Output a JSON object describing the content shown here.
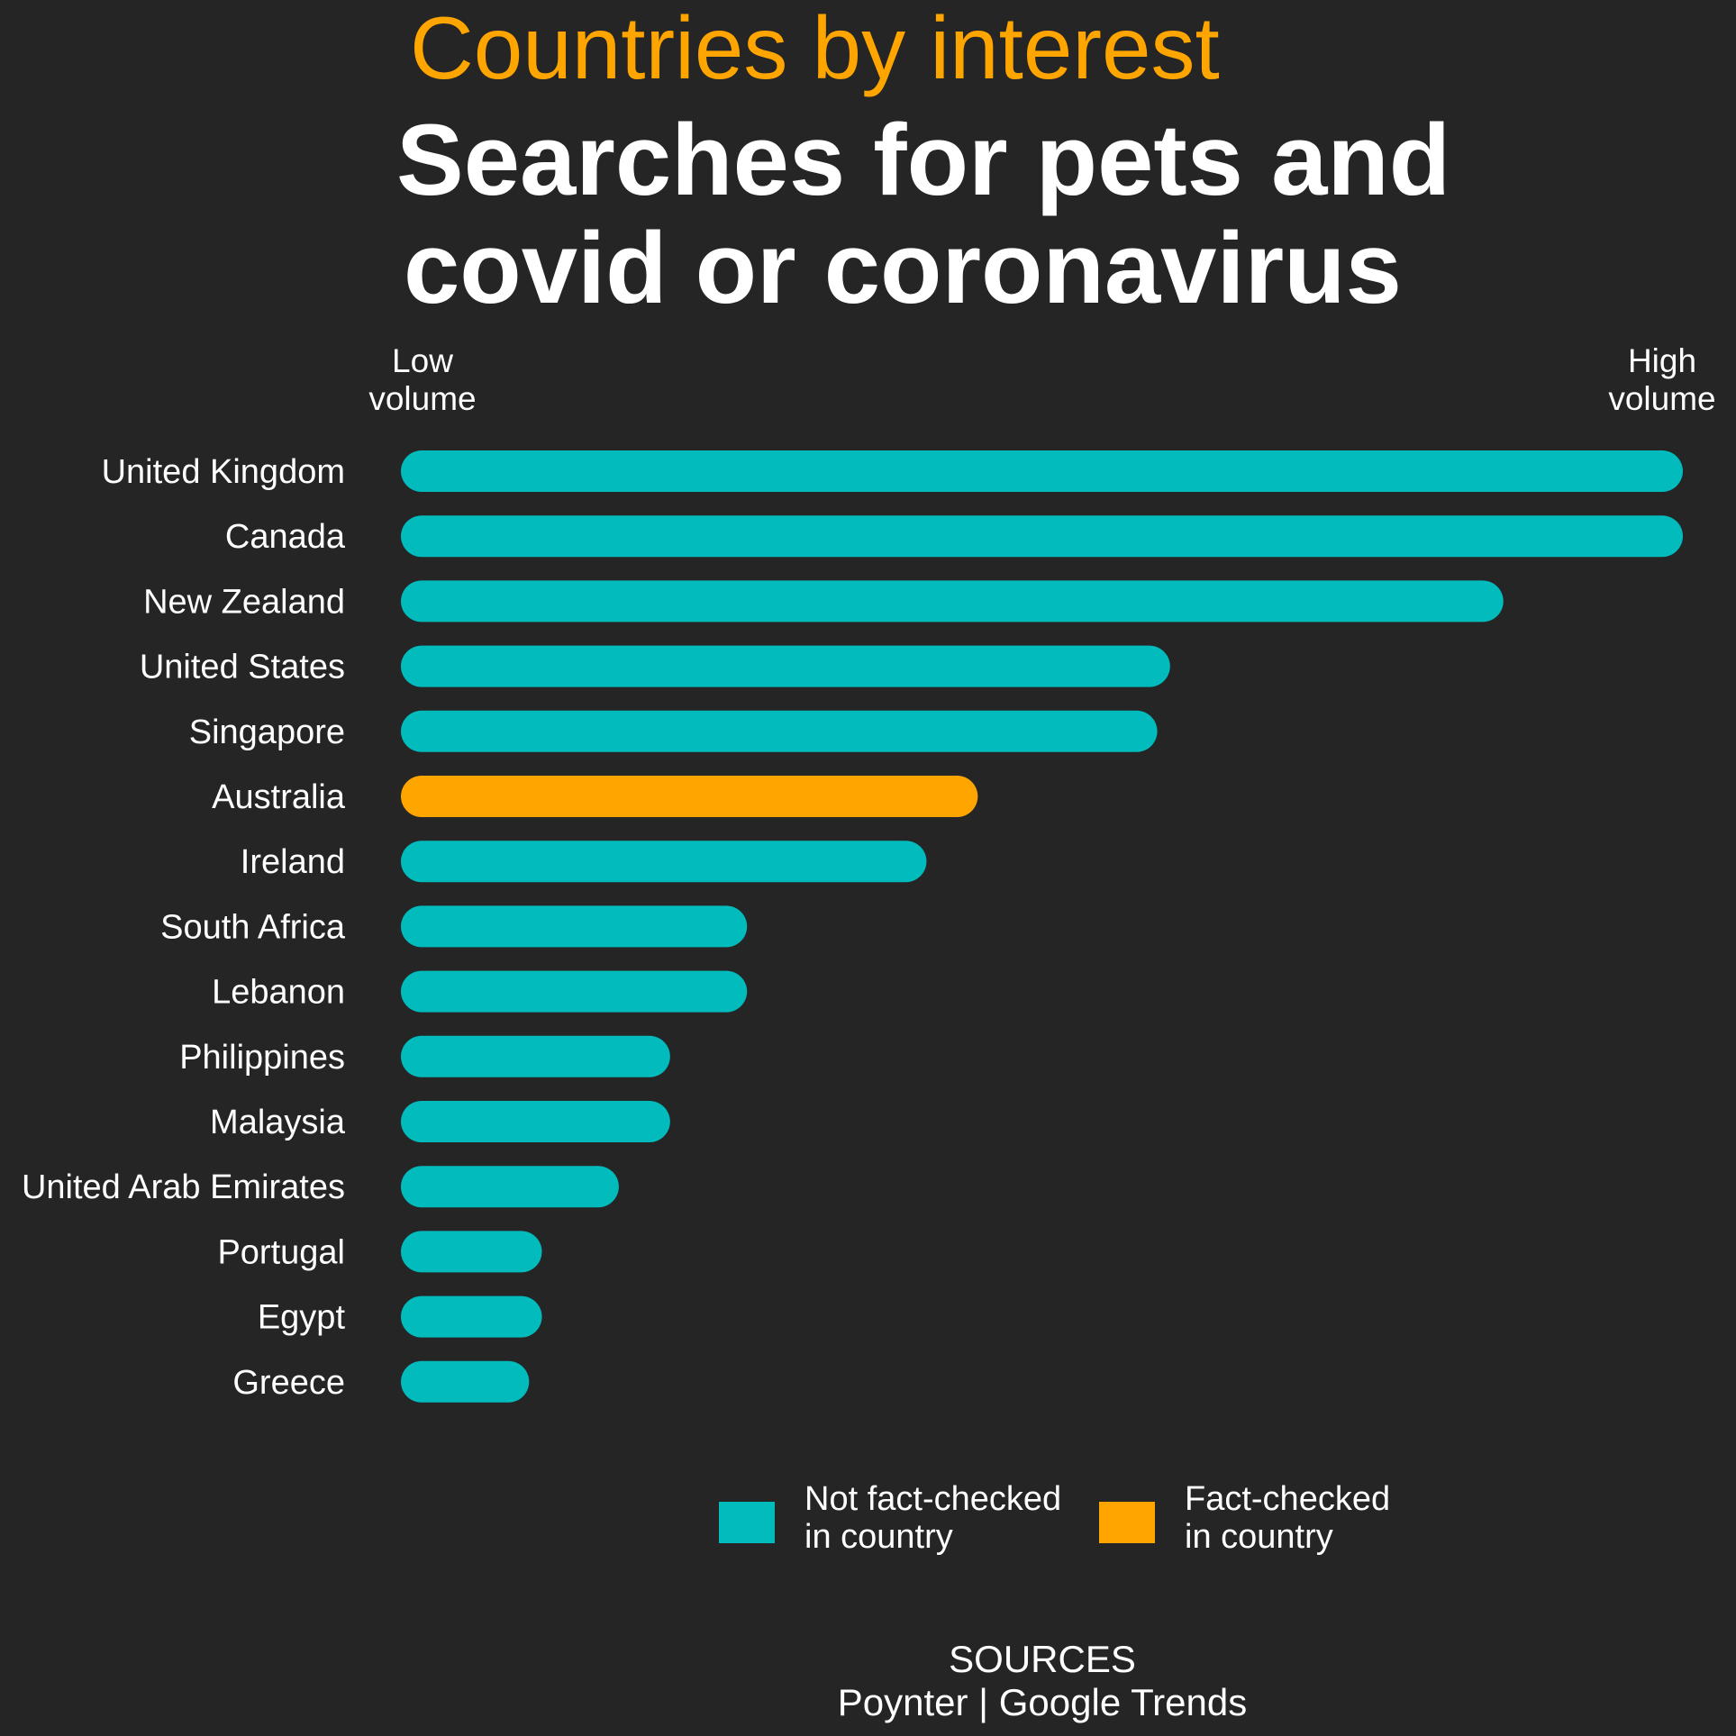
{
  "chart_data": {
    "type": "bar",
    "orientation": "horizontal",
    "kicker": "Countries by interest",
    "title": [
      "Searches for pets and",
      "covid or coronavirus"
    ],
    "scale_low_label": [
      "Low",
      "volume"
    ],
    "scale_high_label": [
      "High",
      "volume"
    ],
    "categories": [
      "United Kingdom",
      "Canada",
      "New Zealand",
      "United States",
      "Singapore",
      "Australia",
      "Ireland",
      "South Africa",
      "Lebanon",
      "Philippines",
      "Malaysia",
      "United Arab Emirates",
      "Portugal",
      "Egypt",
      "Greece"
    ],
    "values": [
      100,
      100,
      86,
      60,
      59,
      45,
      41,
      27,
      27,
      21,
      21,
      17,
      11,
      11,
      10
    ],
    "fact_checked": [
      false,
      false,
      false,
      false,
      false,
      true,
      false,
      false,
      false,
      false,
      false,
      false,
      false,
      false,
      false
    ],
    "xlim": [
      0,
      100
    ],
    "grid": false,
    "legend": {
      "position": "bottom",
      "items": [
        {
          "label": [
            "Not fact-checked",
            "in country"
          ],
          "color": "#02BBBD"
        },
        {
          "label": [
            "Fact-checked",
            "in country"
          ],
          "color": "#FFA500"
        }
      ]
    },
    "sources": [
      "SOURCES",
      "Poynter | Google Trends"
    ]
  },
  "colors": {
    "background": "#252525",
    "not_fact_checked": "#02BBBD",
    "fact_checked": "#FFA500",
    "kicker": "#FFA500",
    "text": "#FFFFFF"
  }
}
